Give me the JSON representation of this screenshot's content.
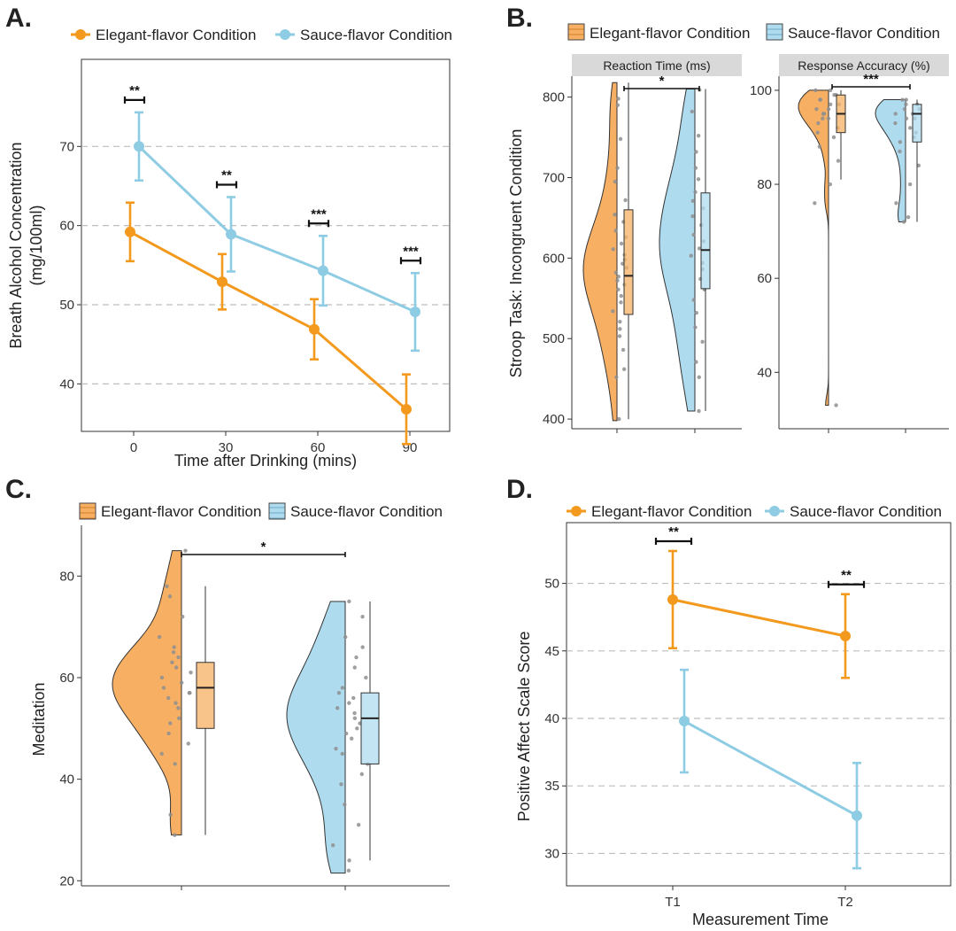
{
  "colors": {
    "elegant": "#F39A1E",
    "sauce": "#8ECCE4",
    "elegant_fill": "#F7B063",
    "sauce_fill": "#AFDBEF",
    "gray_point": "#8f8f8f"
  },
  "panel_labels": [
    "A.",
    "B.",
    "C.",
    "D."
  ],
  "chart_data": [
    {
      "panel": "A.",
      "type": "line",
      "legend": [
        "Elegant-flavor Condition",
        "Sauce-flavor Condition"
      ],
      "legend_position": "top",
      "xlabel": "Time after Drinking (mins)",
      "ylabel": [
        "Breath Alcohol Concentration",
        "(mg/100ml)"
      ],
      "x": [
        0,
        30,
        60,
        90
      ],
      "x_ticks": [
        "0",
        "30",
        "60",
        "90"
      ],
      "ylim": [
        34,
        81
      ],
      "y_ticks": [
        40,
        50,
        60,
        70
      ],
      "grid": "horizontal dashed",
      "series": [
        {
          "name": "Elegant-flavor Condition",
          "values": [
            59.2,
            52.9,
            46.9,
            36.8
          ],
          "err": [
            3.7,
            3.5,
            3.8,
            4.4
          ]
        },
        {
          "name": "Sauce-flavor Condition",
          "values": [
            70.0,
            58.9,
            54.3,
            49.1
          ],
          "err": [
            4.3,
            4.7,
            4.4,
            4.9
          ]
        }
      ],
      "significance": [
        "**",
        "**",
        "***",
        "***"
      ]
    },
    {
      "panel": "B.",
      "type": "raincloud",
      "legend": [
        "Elegant-flavor Condition",
        "Sauce-flavor Condition"
      ],
      "legend_position": "top",
      "ylabel": "Stroop Task: Incongruent Condition",
      "facets": [
        {
          "title": "Reaction Time (ms)",
          "ylim": [
            388,
            826
          ],
          "y_ticks": [
            400,
            500,
            600,
            700,
            800
          ],
          "groups": [
            {
              "name": "Elegant-flavor Condition",
              "min": 400,
              "q1": 530,
              "median": 578,
              "q3": 660,
              "max": 818,
              "points": [
                400,
                452,
                462,
                486,
                503,
                512,
                521,
                534,
                545,
                553,
                561,
                567,
                572,
                577,
                582,
                588,
                593,
                598,
                604,
                611,
                618,
                626,
                634,
                645,
                654,
                672,
                695,
                712,
                748,
                790,
                798
              ]
            },
            {
              "name": "Sauce-flavor Condition",
              "min": 410,
              "q1": 562,
              "median": 610,
              "q3": 681,
              "max": 810,
              "points": [
                410,
                452,
                471,
                496,
                514,
                532,
                548,
                561,
                574,
                586,
                594,
                603,
                612,
                621,
                629,
                641,
                652,
                662,
                671,
                682,
                698,
                712,
                732,
                752,
                782,
                809
              ]
            }
          ],
          "significance": "*"
        },
        {
          "title": "Response Accuracy (%)",
          "ylim": [
            28,
            103
          ],
          "y_ticks": [
            40,
            60,
            80,
            100
          ],
          "groups": [
            {
              "name": "Elegant-flavor Condition",
              "min": 81,
              "q1": 91,
              "median": 95,
              "q3": 99,
              "max": 100,
              "points": [
                33,
                76,
                80,
                85,
                88,
                90,
                91,
                92,
                93,
                94,
                94,
                95,
                95,
                96,
                96,
                97,
                97,
                98,
                98,
                99,
                99,
                100,
                100
              ]
            },
            {
              "name": "Sauce-flavor Condition",
              "min": 72,
              "q1": 89,
              "median": 95,
              "q3": 97,
              "max": 98,
              "points": [
                72,
                73,
                76,
                80,
                84,
                87,
                89,
                90,
                91,
                92,
                93,
                94,
                94,
                95,
                95,
                96,
                96,
                97,
                97,
                98,
                98
              ]
            }
          ],
          "significance": "***"
        }
      ]
    },
    {
      "panel": "C.",
      "type": "raincloud",
      "legend": [
        "Elegant-flavor Condition",
        "Sauce-flavor Condition"
      ],
      "legend_position": "top",
      "ylabel": "Meditation",
      "ylim": [
        19,
        90
      ],
      "y_ticks": [
        20,
        40,
        60,
        80
      ],
      "groups": [
        {
          "name": "Elegant-flavor Condition",
          "min": 29,
          "q1": 50,
          "median": 58,
          "q3": 63,
          "max": 78,
          "points": [
            29,
            33,
            43,
            45,
            47,
            49,
            51,
            52,
            54,
            55,
            56,
            57,
            57,
            58,
            59,
            60,
            61,
            62,
            63,
            64,
            65,
            66,
            68,
            72,
            76,
            78,
            85
          ]
        },
        {
          "name": "Sauce-flavor Condition",
          "min": 24,
          "q1": 43,
          "median": 52,
          "q3": 57,
          "max": 75,
          "points": [
            22,
            24,
            27,
            31,
            35,
            39,
            41,
            43,
            45,
            46,
            48,
            49,
            50,
            51,
            52,
            53,
            54,
            55,
            56,
            57,
            58,
            60,
            62,
            64,
            66,
            68,
            72,
            75
          ]
        }
      ],
      "significance": "*"
    },
    {
      "panel": "D.",
      "type": "line",
      "legend": [
        "Elegant-flavor Condition",
        "Sauce-flavor Condition"
      ],
      "legend_position": "top",
      "xlabel": "Measurement Time",
      "ylabel": "Positive Affect Scale Score",
      "x_ticks": [
        "T1",
        "T2"
      ],
      "ylim": [
        27.6,
        54.5
      ],
      "y_ticks": [
        30,
        35,
        40,
        45,
        50
      ],
      "grid": "horizontal dashed",
      "series": [
        {
          "name": "Elegant-flavor Condition",
          "values": [
            48.8,
            46.1
          ],
          "err": [
            3.6,
            3.1
          ]
        },
        {
          "name": "Sauce-flavor Condition",
          "values": [
            39.8,
            32.8
          ],
          "err": [
            3.8,
            3.9
          ]
        }
      ],
      "significance": [
        "**",
        "**"
      ]
    }
  ]
}
